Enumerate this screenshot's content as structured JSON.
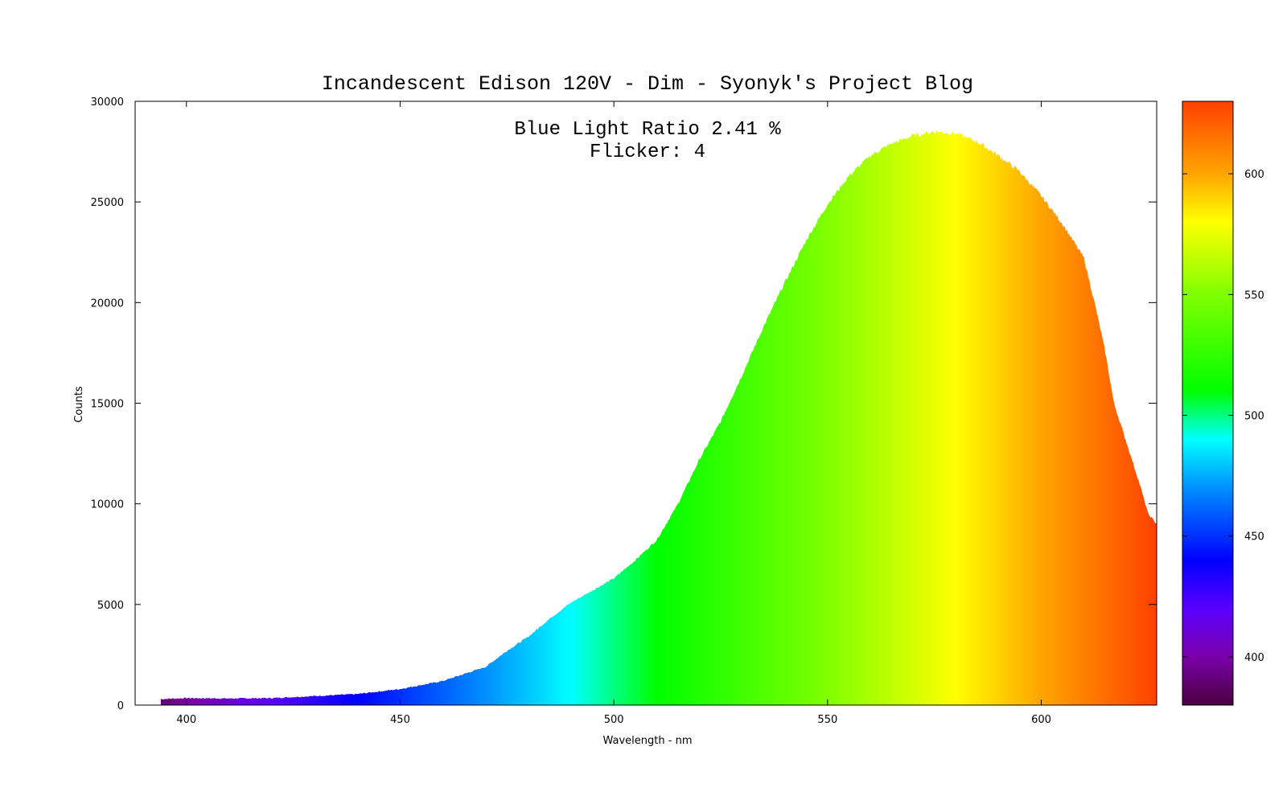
{
  "chart_data": {
    "type": "area",
    "title": "Incandescent Edison 120V - Dim - Syonyk's Project Blog",
    "annotations": [
      "Blue Light Ratio 2.41 %",
      "Flicker: 4"
    ],
    "xlabel": "Wavelength - nm",
    "ylabel": "Counts",
    "xlim": [
      388,
      627
    ],
    "ylim": [
      0,
      30000
    ],
    "x_ticks": [
      400,
      450,
      500,
      550,
      600
    ],
    "y_ticks": [
      0,
      5000,
      10000,
      15000,
      20000,
      25000,
      30000
    ],
    "grid": false,
    "fill": "wavelength-colored",
    "series": [
      {
        "x": [
          394,
          400,
          410,
          420,
          430,
          440,
          450,
          460,
          470,
          475,
          480,
          485,
          490,
          495,
          500,
          505,
          510,
          515,
          520,
          525,
          530,
          535,
          540,
          545,
          550,
          555,
          560,
          565,
          570,
          575,
          580,
          585,
          590,
          595,
          600,
          605,
          610,
          613,
          615,
          617,
          620,
          623,
          625,
          627
        ],
        "y": [
          300,
          350,
          330,
          350,
          450,
          550,
          800,
          1200,
          1900,
          2700,
          3400,
          4300,
          5100,
          5700,
          6300,
          7200,
          8200,
          10000,
          12200,
          14100,
          16400,
          18800,
          21000,
          23100,
          24900,
          26300,
          27300,
          27900,
          28300,
          28500,
          28400,
          28000,
          27300,
          26500,
          25300,
          23900,
          22200,
          19500,
          17500,
          15000,
          13000,
          11000,
          9500,
          9000
        ]
      }
    ],
    "colorbar": {
      "range": [
        380,
        630
      ],
      "ticks": [
        400,
        450,
        500,
        550,
        600
      ],
      "colormap": [
        {
          "value": 380,
          "color": "#4b0040"
        },
        {
          "value": 400,
          "color": "#7a00a8"
        },
        {
          "value": 420,
          "color": "#5a00ff"
        },
        {
          "value": 440,
          "color": "#0000ff"
        },
        {
          "value": 470,
          "color": "#0090ff"
        },
        {
          "value": 490,
          "color": "#00ffff"
        },
        {
          "value": 510,
          "color": "#00ff00"
        },
        {
          "value": 550,
          "color": "#80ff00"
        },
        {
          "value": 580,
          "color": "#ffff00"
        },
        {
          "value": 600,
          "color": "#ffa500"
        },
        {
          "value": 630,
          "color": "#ff4000"
        }
      ]
    }
  }
}
